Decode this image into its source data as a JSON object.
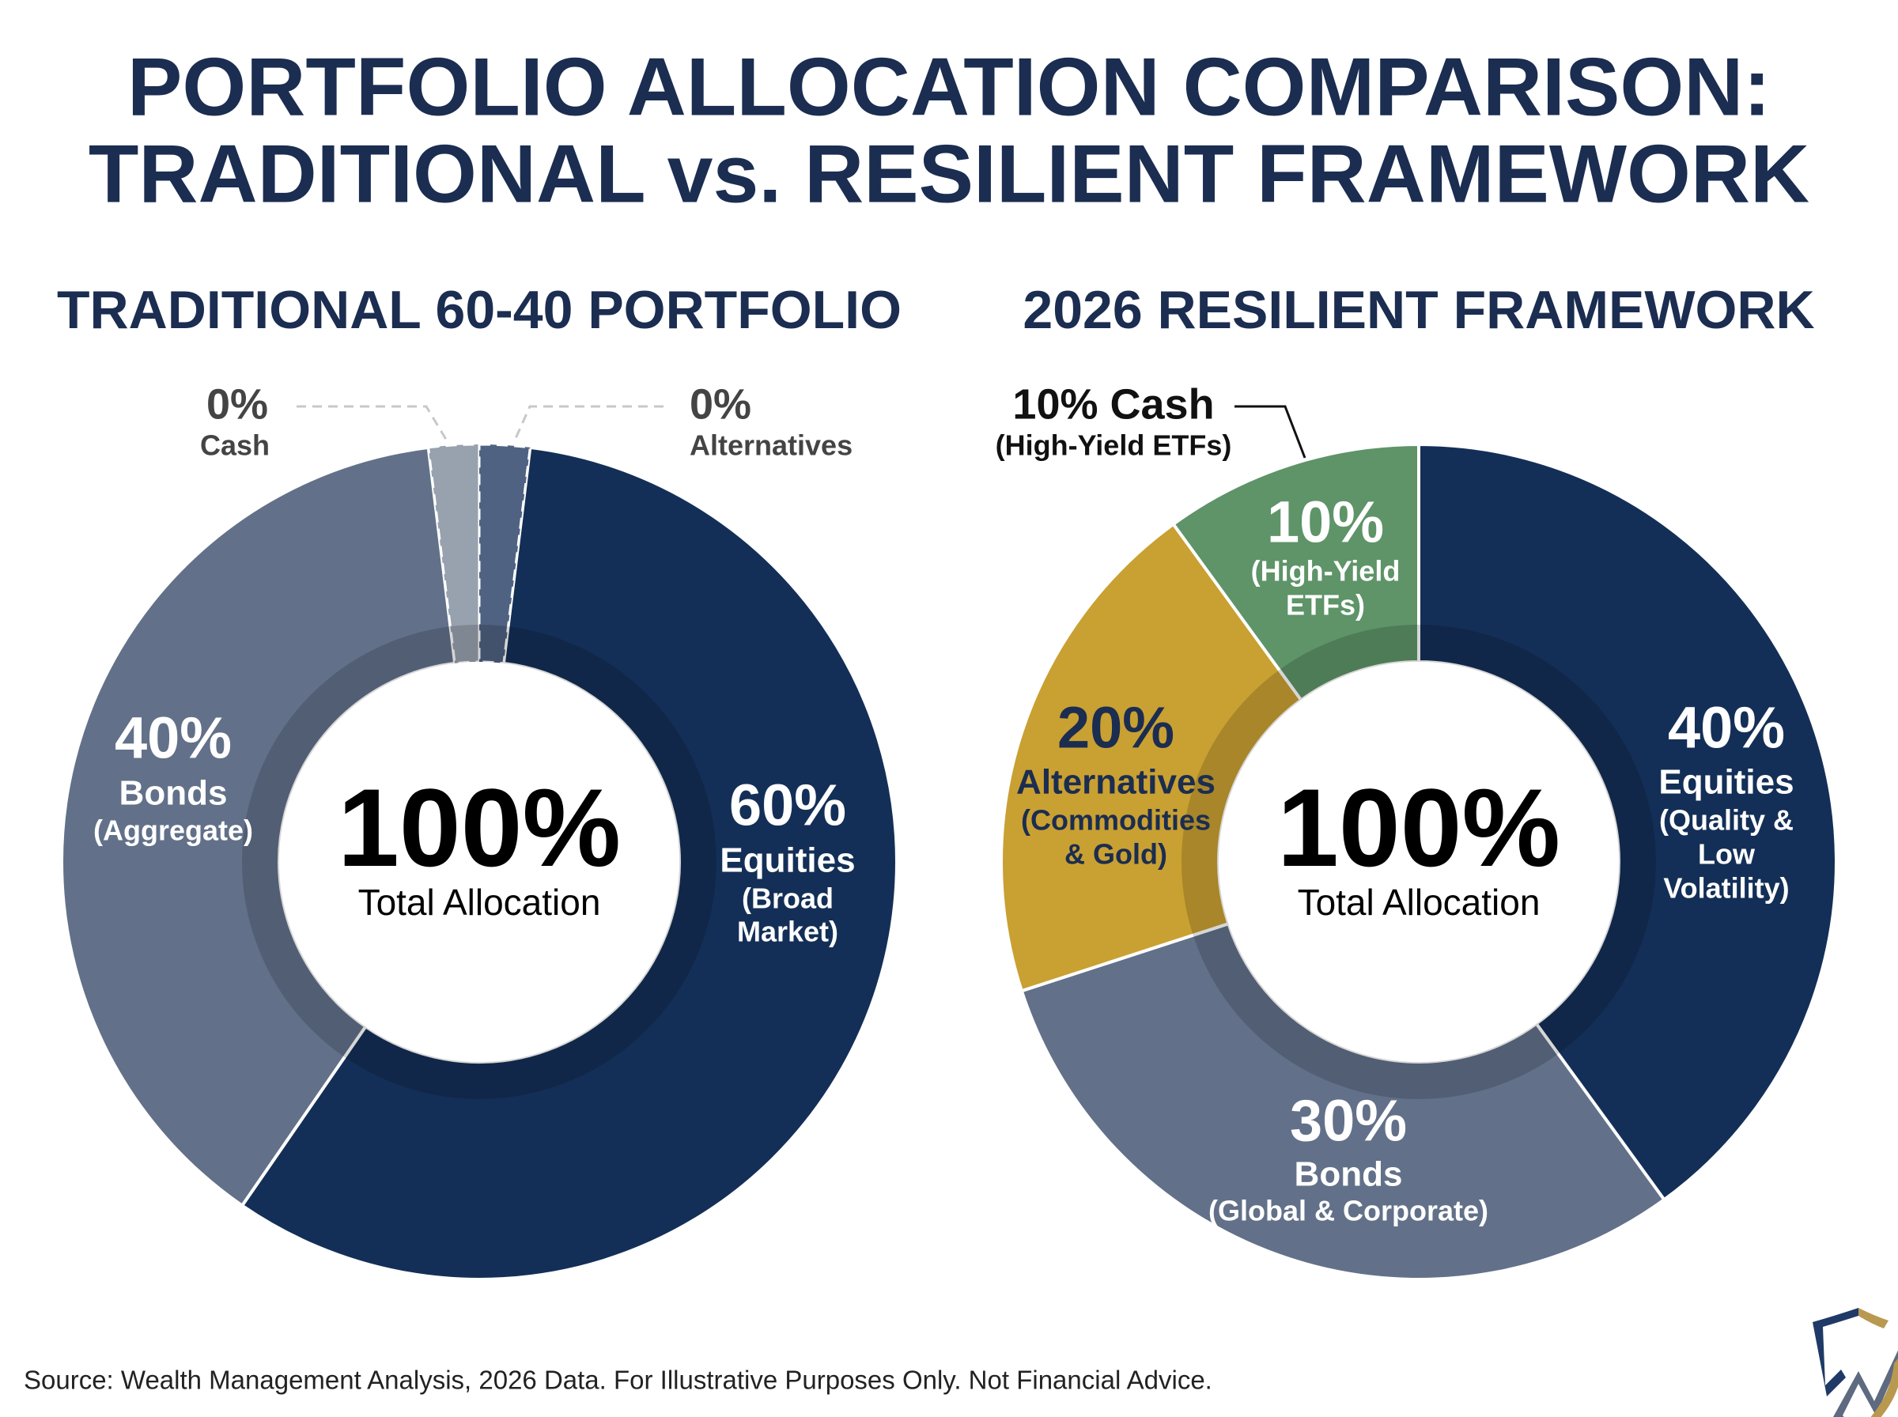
{
  "title": {
    "line1": "PORTFOLIO ALLOCATION COMPARISON:",
    "line2": "TRADITIONAL vs. RESILIENT FRAMEWORK"
  },
  "footer": {
    "source": "Source: Wealth Management Analysis, 2026 Data. For Illustrative Purposes Only. Not Financial Advice."
  },
  "logo": {
    "icon": "shield-chart-arrow-logo"
  },
  "colors": {
    "title": "#1b2d50",
    "equities": "#142f57",
    "bonds": "#627189",
    "alternatives": "#c9a032",
    "cash": "#5e9468",
    "cash_zero": "#98a1ae",
    "alternatives_zero": "#4f6281"
  },
  "chart_data": [
    {
      "type": "pie",
      "subtype": "donut",
      "title": "TRADITIONAL 60-40 PORTFOLIO",
      "center": {
        "value": "100%",
        "label": "Total Allocation"
      },
      "slices": [
        {
          "key": "equities",
          "value": 60,
          "pct": "60%",
          "label": "Equities",
          "detail": [
            "(Broad",
            "Market)"
          ]
        },
        {
          "key": "bonds",
          "value": 40,
          "pct": "40%",
          "label": "Bonds",
          "detail": [
            "(Aggregate)"
          ]
        },
        {
          "key": "cash",
          "value": 0,
          "pct": "0%",
          "label": "Cash",
          "detail": []
        },
        {
          "key": "alternatives",
          "value": 0,
          "pct": "0%",
          "label": "Alternatives",
          "detail": []
        }
      ]
    },
    {
      "type": "pie",
      "subtype": "donut",
      "title": "2026 RESILIENT FRAMEWORK",
      "center": {
        "value": "100%",
        "label": "Total Allocation"
      },
      "callout": {
        "title": "10% Cash",
        "detail": "(High-Yield ETFs)"
      },
      "slices": [
        {
          "key": "equities",
          "value": 40,
          "pct": "40%",
          "label": "Equities",
          "detail": [
            "(Quality &",
            "Low",
            "Volatility)"
          ]
        },
        {
          "key": "bonds",
          "value": 30,
          "pct": "30%",
          "label": "Bonds",
          "detail": [
            "(Global & Corporate)"
          ]
        },
        {
          "key": "alternatives",
          "value": 20,
          "pct": "20%",
          "label": "Alternatives",
          "detail": [
            "(Commodities",
            "& Gold)"
          ]
        },
        {
          "key": "cash",
          "value": 10,
          "pct": "10%",
          "label": "",
          "detail": [
            "(High-Yield",
            "ETFs)"
          ]
        }
      ]
    }
  ]
}
